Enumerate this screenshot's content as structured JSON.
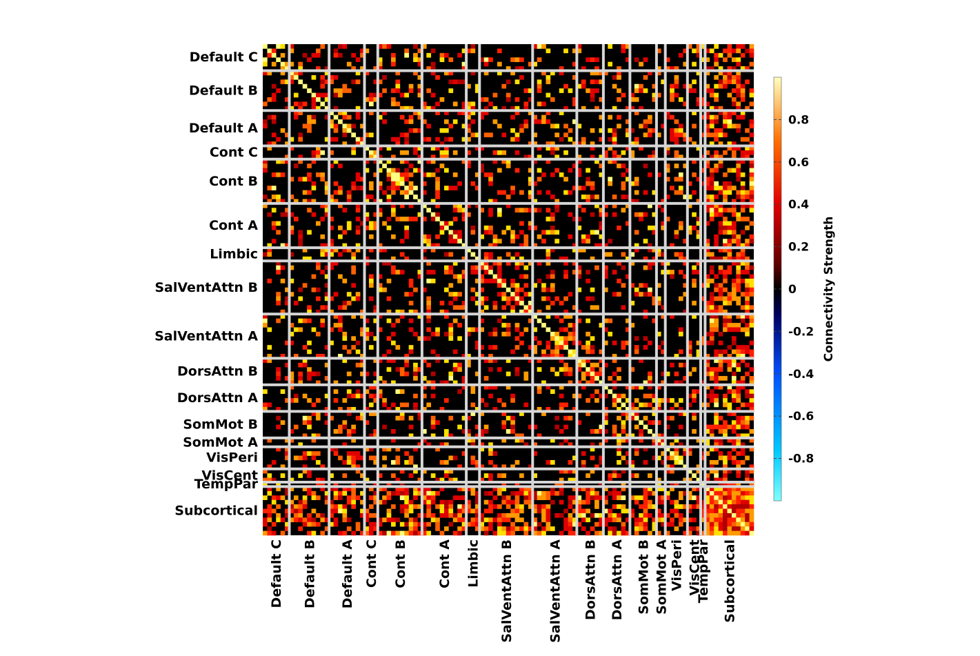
{
  "chart_data": {
    "type": "heatmap",
    "title": "",
    "xlabel": "",
    "ylabel": "",
    "colorbar": {
      "label": "Connectivity Strength",
      "range": [
        -1,
        1
      ],
      "ticks": [
        0.8,
        0.6,
        0.4,
        0.2,
        0,
        -0.2,
        -0.4,
        -0.6,
        -0.8
      ],
      "tick_labels": [
        "0.8",
        "0.6",
        "0.4",
        "0.2",
        "0",
        "-0.2",
        "-0.4",
        "-0.6",
        "-0.8"
      ],
      "colormap": "hot (positive) / cool (negative)",
      "placement": "right"
    },
    "networks": [
      {
        "name": "Default C",
        "size": 6
      },
      {
        "name": "Default B",
        "size": 9
      },
      {
        "name": "Default A",
        "size": 8
      },
      {
        "name": "Cont C",
        "size": 3
      },
      {
        "name": "Cont B",
        "size": 10
      },
      {
        "name": "Cont A",
        "size": 10
      },
      {
        "name": "Limbic",
        "size": 3
      },
      {
        "name": "SalVentAttn B",
        "size": 12
      },
      {
        "name": "SalVentAttn A",
        "size": 10
      },
      {
        "name": "DorsAttn B",
        "size": 6
      },
      {
        "name": "DorsAttn A",
        "size": 6
      },
      {
        "name": "SomMot B",
        "size": 6
      },
      {
        "name": "SomMot A",
        "size": 2
      },
      {
        "name": "VisPeri",
        "size": 5
      },
      {
        "name": "VisCent",
        "size": 3
      },
      {
        "name": "TempPar",
        "size": 1
      },
      {
        "name": "Subcortical",
        "size": 11
      }
    ],
    "grid": true,
    "diagonal_value": 0.95
  }
}
